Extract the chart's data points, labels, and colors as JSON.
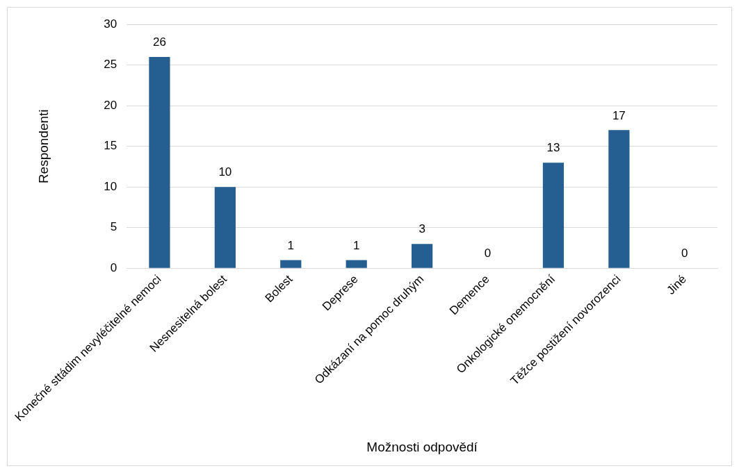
{
  "chart_data": {
    "type": "bar",
    "xlabel": "Možnosti odpovědí",
    "ylabel": "Respondenti",
    "categories": [
      "Konečné sttádim nevyléčitelné nemoci",
      "Nesnesitelná bolest",
      "Bolest",
      "Deprese",
      "Odkázaní na pomoc druhým",
      "Demence",
      "Onkologické onemocnění",
      "Těžce postižení novorozenci",
      "Jiné"
    ],
    "values": [
      26,
      10,
      1,
      1,
      3,
      0,
      13,
      17,
      0
    ],
    "color": "#255e91",
    "ylim": [
      0,
      30
    ],
    "yticks": [
      0,
      5,
      10,
      15,
      20,
      25,
      30
    ],
    "grid": "y",
    "data_labels": true,
    "legend": false
  }
}
